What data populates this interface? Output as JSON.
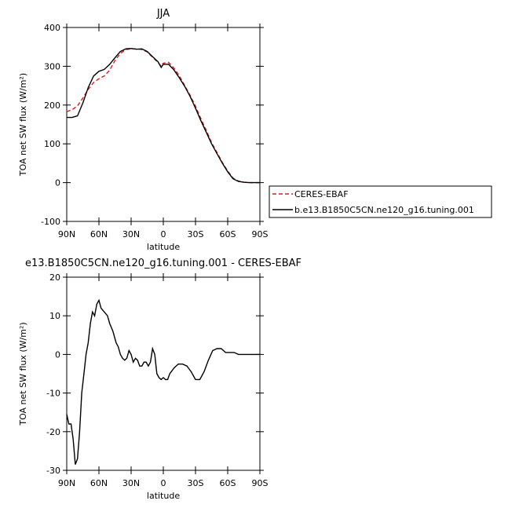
{
  "chart_data": [
    {
      "type": "line",
      "title": "JJA",
      "xlabel": "latitude",
      "ylabel": "TOA net SW flux (W/m²)",
      "x": [
        90,
        85,
        80,
        75,
        70,
        65,
        60,
        55,
        50,
        45,
        40,
        35,
        30,
        25,
        20,
        15,
        10,
        5,
        2,
        0,
        -5,
        -10,
        -15,
        -20,
        -25,
        -30,
        -35,
        -40,
        -45,
        -50,
        -55,
        -60,
        -65,
        -70,
        -75,
        -80,
        -85,
        -90
      ],
      "series": [
        {
          "name": "CERES-EBAF",
          "color": "#e41a1c",
          "line_style": "dashed",
          "values": [
            183,
            188,
            198,
            218,
            240,
            258,
            268,
            275,
            290,
            315,
            333,
            343,
            345,
            345,
            343,
            337,
            323,
            310,
            300,
            308,
            310,
            295,
            275,
            250,
            225,
            197,
            165,
            135,
            103,
            78,
            52,
            30,
            12,
            4,
            1,
            0,
            0,
            0
          ]
        },
        {
          "name": "b.e13.B1850C5CN.ne120_g16.tuning.001",
          "color": "#000000",
          "line_style": "solid",
          "values": [
            168,
            168,
            172,
            205,
            245,
            275,
            287,
            292,
            305,
            322,
            338,
            345,
            346,
            344,
            345,
            338,
            325,
            312,
            297,
            305,
            305,
            290,
            270,
            248,
            222,
            192,
            160,
            130,
            100,
            75,
            50,
            28,
            10,
            3,
            1,
            0,
            0,
            0
          ]
        }
      ],
      "xlim": [
        90,
        -90
      ],
      "xticks": [
        {
          "value": 90,
          "label": "90N"
        },
        {
          "value": 60,
          "label": "60N"
        },
        {
          "value": 30,
          "label": "30N"
        },
        0,
        {
          "value": -30,
          "label": "30S"
        },
        {
          "value": -60,
          "label": "60S"
        },
        {
          "value": -90,
          "label": "90S"
        }
      ],
      "ylim": [
        -100,
        400
      ],
      "yticks": [
        -100,
        0,
        100,
        200,
        300,
        400
      ]
    },
    {
      "type": "line",
      "title": "e13.B1850C5CN.ne120_g16.tuning.001 - CERES-EBAF",
      "xlabel": "latitude",
      "ylabel": "TOA net SW flux (W/m²)",
      "x": [
        90,
        88,
        86,
        84,
        82,
        80,
        78,
        76,
        74,
        72,
        70,
        68,
        66,
        64,
        62,
        60,
        58,
        55,
        52,
        50,
        47,
        44,
        42,
        40,
        38,
        36,
        34,
        32,
        30,
        28,
        26,
        24,
        22,
        20,
        18,
        16,
        14,
        12,
        10,
        8,
        6,
        4,
        2,
        0,
        -2,
        -4,
        -6,
        -10,
        -14,
        -18,
        -22,
        -26,
        -30,
        -34,
        -38,
        -42,
        -46,
        -50,
        -54,
        -58,
        -62,
        -66,
        -70,
        -75,
        -80,
        -85,
        -90
      ],
      "series": [
        {
          "color": "#000000",
          "line_style": "solid",
          "values": [
            -15.5,
            -18,
            -18,
            -22,
            -28.5,
            -27,
            -20,
            -10,
            -5,
            0,
            3,
            8,
            11,
            10,
            13,
            14,
            12,
            11,
            10,
            8,
            6,
            3,
            2,
            0,
            -1,
            -1.5,
            -1,
            1,
            0,
            -2,
            -1,
            -1.5,
            -3,
            -3,
            -2,
            -2,
            -3,
            -2,
            1.5,
            0,
            -5,
            -6,
            -6.5,
            -6,
            -6.5,
            -6.5,
            -5,
            -3.5,
            -2.5,
            -2.5,
            -3,
            -4.5,
            -6.5,
            -6.5,
            -4.5,
            -1.5,
            1,
            1.5,
            1.5,
            0.5,
            0.5,
            0.5,
            0,
            0,
            0,
            0,
            0
          ]
        }
      ],
      "xlim": [
        90,
        -90
      ],
      "xticks": [
        {
          "value": 90,
          "label": "90N"
        },
        {
          "value": 60,
          "label": "60N"
        },
        {
          "value": 30,
          "label": "30N"
        },
        0,
        {
          "value": -30,
          "label": "30S"
        },
        {
          "value": -60,
          "label": "60S"
        },
        {
          "value": -90,
          "label": "90S"
        }
      ],
      "ylim": [
        -30,
        20
      ],
      "yticks": [
        -30,
        -20,
        -10,
        0,
        10,
        20
      ]
    }
  ]
}
